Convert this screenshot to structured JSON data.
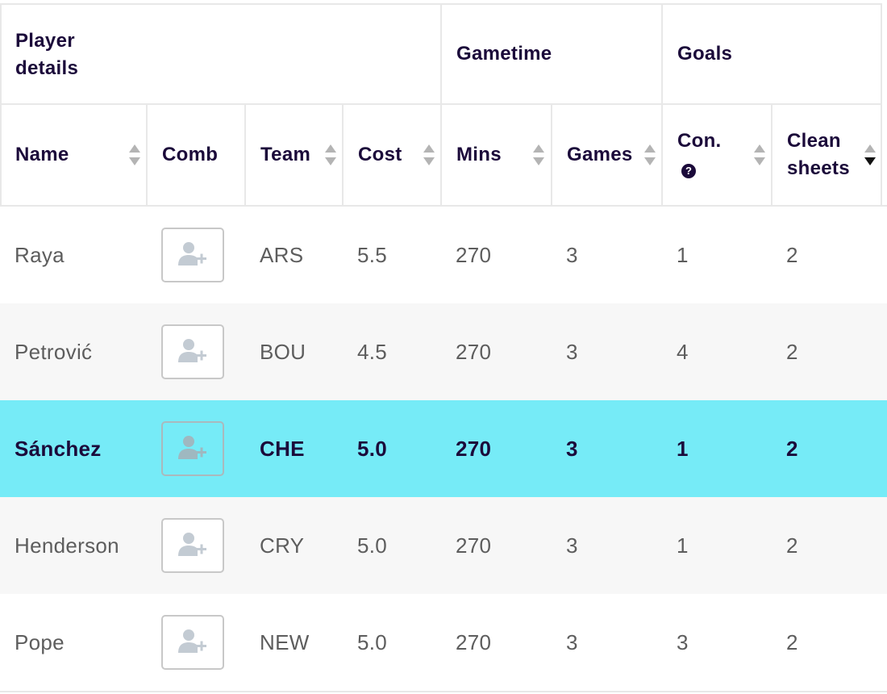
{
  "groups": {
    "player_details": "Player\ndetails",
    "player_details_line1": "Player",
    "player_details_line2": "details",
    "gametime": "Gametime",
    "goals": "Goals"
  },
  "columns": {
    "name": "Name",
    "comb": "Comb",
    "team": "Team",
    "cost": "Cost",
    "mins": "Mins",
    "games": "Games",
    "con": "Con.",
    "clean_sheets_line1": "Clean",
    "clean_sheets_line2": "sheets"
  },
  "sort": {
    "active_column": "clean_sheets",
    "direction": "descending"
  },
  "icons": {
    "sort": "sort-icon",
    "help": "question-circle-icon",
    "add_player": "add-user-icon"
  },
  "colors": {
    "selected_row": "#76ebf7",
    "header_text": "#1b0a3a",
    "body_text": "#5d5d5d",
    "zebra": "#f7f7f7"
  },
  "rows": [
    {
      "name": "Raya",
      "team": "ARS",
      "cost": "5.5",
      "mins": "270",
      "games": "3",
      "con": "1",
      "clean_sheets": "2",
      "selected": false
    },
    {
      "name": "Petrović",
      "team": "BOU",
      "cost": "4.5",
      "mins": "270",
      "games": "3",
      "con": "4",
      "clean_sheets": "2",
      "selected": false
    },
    {
      "name": "Sánchez",
      "team": "CHE",
      "cost": "5.0",
      "mins": "270",
      "games": "3",
      "con": "1",
      "clean_sheets": "2",
      "selected": true
    },
    {
      "name": "Henderson",
      "team": "CRY",
      "cost": "5.0",
      "mins": "270",
      "games": "3",
      "con": "1",
      "clean_sheets": "2",
      "selected": false
    },
    {
      "name": "Pope",
      "team": "NEW",
      "cost": "5.0",
      "mins": "270",
      "games": "3",
      "con": "3",
      "clean_sheets": "2",
      "selected": false
    }
  ]
}
